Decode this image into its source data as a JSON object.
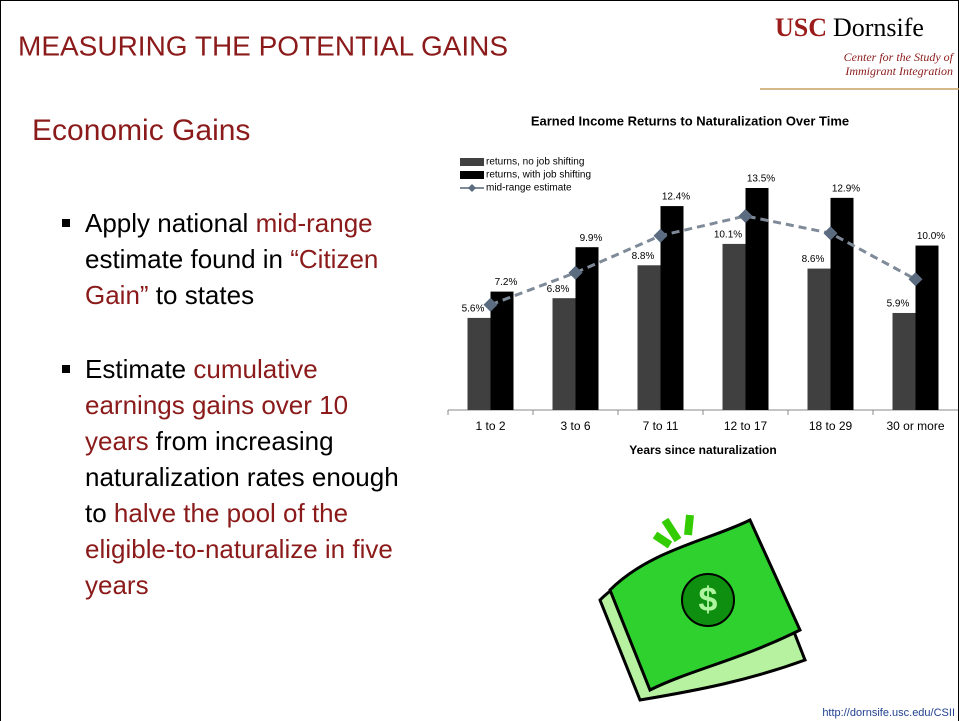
{
  "header": {
    "title": "MEASURING THE POTENTIAL GAINS",
    "logo_usc": "USC",
    "logo_name": "Dornsife",
    "logo_sub1": "Center for the Study of",
    "logo_sub2": "Immigrant Integration"
  },
  "subtitle": "Economic Gains",
  "bullets": [
    [
      {
        "text": "Apply national "
      },
      {
        "text": "mid-range",
        "color": "#8b1a1a"
      },
      {
        "text": " estimate found in "
      },
      {
        "text": "“Citizen Gain”",
        "color": "#8b1a1a"
      },
      {
        "text": " to states"
      }
    ],
    [
      {
        "text": "Estimate "
      },
      {
        "text": "cumulative earnings gains over 10 years",
        "color": "#8b1a1a"
      },
      {
        "text": " from increasing naturalization rates enough to "
      },
      {
        "text": "halve the pool of the eligible-to-naturalize in five years",
        "color": "#8b1a1a"
      }
    ]
  ],
  "chart_data": {
    "type": "bar",
    "title": "Earned Income Returns to Naturalization Over Time",
    "x_label": "Years since naturalization",
    "categories": [
      "1 to 2",
      "3 to 6",
      "7 to 11",
      "12 to 17",
      "18 to 29",
      "30 or more"
    ],
    "series": [
      {
        "name": "returns, no job shifting",
        "color": "#404040",
        "values": [
          5.6,
          6.8,
          8.8,
          10.1,
          8.6,
          5.9
        ],
        "value_labels": [
          "5.6%",
          "6.8%",
          "8.8%",
          "10.1%",
          "8.6%",
          "5.9%"
        ]
      },
      {
        "name": "returns, with job shifting",
        "color": "#000000",
        "values": [
          7.2,
          9.9,
          12.4,
          13.5,
          12.9,
          10
        ],
        "value_labels": [
          "7.2%",
          "9.9%",
          "12.4%",
          "13.5%",
          "12.9%",
          "10.0%"
        ]
      },
      {
        "name": "mid-range estimate",
        "type": "line",
        "color": "#7f8a99",
        "values": [
          6.4,
          8.35,
          10.6,
          11.8,
          10.75,
          7.95
        ]
      }
    ]
  },
  "footer": "http://dornsife.usc.edu/CSII"
}
